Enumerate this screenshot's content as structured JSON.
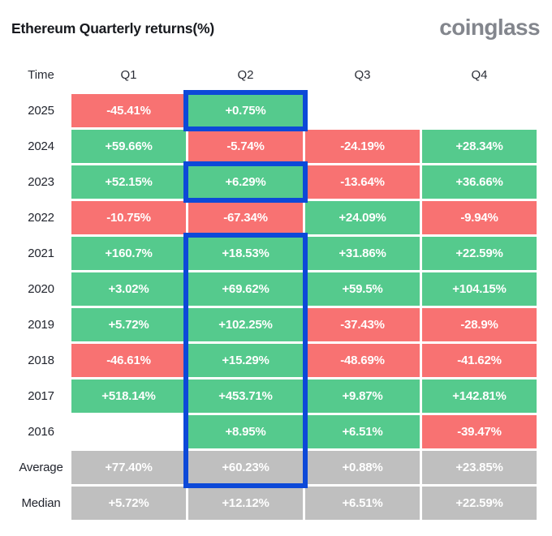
{
  "header": {
    "title": "Ethereum Quarterly returns(%)",
    "logo": "coinglass"
  },
  "chart_data": {
    "type": "heatmap",
    "title": "Ethereum Quarterly returns(%)",
    "columns": [
      "Time",
      "Q1",
      "Q2",
      "Q3",
      "Q4"
    ],
    "rows": [
      {
        "label": "2025",
        "type": "year",
        "values": [
          "-45.41%",
          "+0.75%",
          "",
          ""
        ]
      },
      {
        "label": "2024",
        "type": "year",
        "values": [
          "+59.66%",
          "-5.74%",
          "-24.19%",
          "+28.34%"
        ]
      },
      {
        "label": "2023",
        "type": "year",
        "values": [
          "+52.15%",
          "+6.29%",
          "-13.64%",
          "+36.66%"
        ]
      },
      {
        "label": "2022",
        "type": "year",
        "values": [
          "-10.75%",
          "-67.34%",
          "+24.09%",
          "-9.94%"
        ]
      },
      {
        "label": "2021",
        "type": "year",
        "values": [
          "+160.7%",
          "+18.53%",
          "+31.86%",
          "+22.59%"
        ]
      },
      {
        "label": "2020",
        "type": "year",
        "values": [
          "+3.02%",
          "+69.62%",
          "+59.5%",
          "+104.15%"
        ]
      },
      {
        "label": "2019",
        "type": "year",
        "values": [
          "+5.72%",
          "+102.25%",
          "-37.43%",
          "-28.9%"
        ]
      },
      {
        "label": "2018",
        "type": "year",
        "values": [
          "-46.61%",
          "+15.29%",
          "-48.69%",
          "-41.62%"
        ]
      },
      {
        "label": "2017",
        "type": "year",
        "values": [
          "+518.14%",
          "+453.71%",
          "+9.87%",
          "+142.81%"
        ]
      },
      {
        "label": "2016",
        "type": "year",
        "values": [
          "",
          "+8.95%",
          "+6.51%",
          "-39.47%"
        ]
      },
      {
        "label": "Average",
        "type": "summary",
        "values": [
          "+77.40%",
          "+60.23%",
          "+0.88%",
          "+23.85%"
        ]
      },
      {
        "label": "Median",
        "type": "summary",
        "values": [
          "+5.72%",
          "+12.12%",
          "+6.51%",
          "+22.59%"
        ]
      }
    ],
    "highlights": [
      {
        "start_row": "2025",
        "end_row": "2025",
        "column": "Q2"
      },
      {
        "start_row": "2023",
        "end_row": "2023",
        "column": "Q2"
      },
      {
        "start_row": "2021",
        "end_row": "Average",
        "column": "Q2"
      }
    ],
    "colors": {
      "positive": "#55CA8D",
      "negative": "#F87272",
      "summary": "#BFBFBF",
      "highlight_border": "#0D49D8"
    },
    "legend": "green = positive quarterly return, red = negative quarterly return, gray = aggregate rows"
  }
}
